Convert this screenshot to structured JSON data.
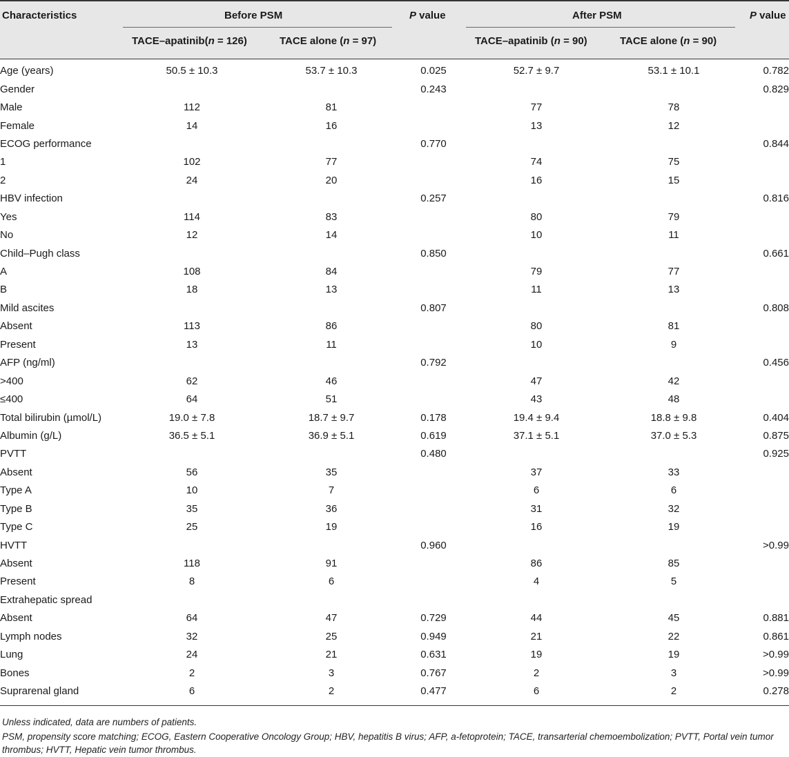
{
  "header": {
    "characteristics": "Characteristics",
    "before_psm": "Before PSM",
    "after_psm": "After PSM",
    "p_value_italic": "P",
    "p_value_rest": " value",
    "before_apatinib": "TACE–apatinib(",
    "before_apatinib_n": "n",
    "before_apatinib_val": " = 126)",
    "before_alone": "TACE alone (",
    "before_alone_n": "n",
    "before_alone_val": " = 97)",
    "after_apatinib": "TACE–apatinib (",
    "after_apatinib_n": "n",
    "after_apatinib_val": " = 90)",
    "after_alone": "TACE alone (",
    "after_alone_n": "n",
    "after_alone_val": " = 90)"
  },
  "rows": [
    [
      "Age (years)",
      "50.5 ± 10.3",
      "53.7 ± 10.3",
      "0.025",
      "52.7 ± 9.7",
      "53.1 ± 10.1",
      "0.782"
    ],
    [
      "Gender",
      "",
      "",
      "0.243",
      "",
      "",
      "0.829"
    ],
    [
      "Male",
      "112",
      "81",
      "",
      "77",
      "78",
      ""
    ],
    [
      "Female",
      "14",
      "16",
      "",
      "13",
      "12",
      ""
    ],
    [
      "ECOG performance",
      "",
      "",
      "0.770",
      "",
      "",
      "0.844"
    ],
    [
      "1",
      "102",
      "77",
      "",
      "74",
      "75",
      ""
    ],
    [
      "2",
      "24",
      "20",
      "",
      "16",
      "15",
      ""
    ],
    [
      "HBV infection",
      "",
      "",
      "0.257",
      "",
      "",
      "0.816"
    ],
    [
      "Yes",
      "114",
      "83",
      "",
      "80",
      "79",
      ""
    ],
    [
      "No",
      "12",
      "14",
      "",
      "10",
      "11",
      ""
    ],
    [
      "Child–Pugh class",
      "",
      "",
      "0.850",
      "",
      "",
      "0.661"
    ],
    [
      "A",
      "108",
      "84",
      "",
      "79",
      "77",
      ""
    ],
    [
      "B",
      "18",
      "13",
      "",
      "11",
      "13",
      ""
    ],
    [
      "Mild ascites",
      "",
      "",
      "0.807",
      "",
      "",
      "0.808"
    ],
    [
      "Absent",
      "113",
      "86",
      "",
      "80",
      "81",
      ""
    ],
    [
      "Present",
      "13",
      "11",
      "",
      "10",
      "9",
      ""
    ],
    [
      "AFP (ng/ml)",
      "",
      "",
      "0.792",
      "",
      "",
      "0.456"
    ],
    [
      ">400",
      "62",
      "46",
      "",
      "47",
      "42",
      ""
    ],
    [
      "≤400",
      "64",
      "51",
      "",
      "43",
      "48",
      ""
    ],
    [
      "Total bilirubin (µmol/L)",
      "19.0 ± 7.8",
      "18.7 ± 9.7",
      "0.178",
      "19.4 ± 9.4",
      "18.8 ± 9.8",
      "0.404"
    ],
    [
      "Albumin (g/L)",
      "36.5 ± 5.1",
      "36.9 ± 5.1",
      "0.619",
      "37.1 ± 5.1",
      "37.0 ± 5.3",
      "0.875"
    ],
    [
      "PVTT",
      "",
      "",
      "0.480",
      "",
      "",
      "0.925"
    ],
    [
      "Absent",
      "56",
      "35",
      "",
      "37",
      "33",
      ""
    ],
    [
      "Type A",
      "10",
      "7",
      "",
      "6",
      "6",
      ""
    ],
    [
      "Type B",
      "35",
      "36",
      "",
      "31",
      "32",
      ""
    ],
    [
      "Type C",
      "25",
      "19",
      "",
      "16",
      "19",
      ""
    ],
    [
      "HVTT",
      "",
      "",
      "0.960",
      "",
      "",
      ">0.99"
    ],
    [
      "Absent",
      "118",
      "91",
      "",
      "86",
      "85",
      ""
    ],
    [
      "Present",
      "8",
      "6",
      "",
      "4",
      "5",
      ""
    ],
    [
      "Extrahepatic spread",
      "",
      "",
      "",
      "",
      "",
      ""
    ],
    [
      "Absent",
      "64",
      "47",
      "0.729",
      "44",
      "45",
      "0.881"
    ],
    [
      "Lymph nodes",
      "32",
      "25",
      "0.949",
      "21",
      "22",
      "0.861"
    ],
    [
      "Lung",
      "24",
      "21",
      "0.631",
      "19",
      "19",
      ">0.99"
    ],
    [
      "Bones",
      "2",
      "3",
      "0.767",
      "2",
      "3",
      ">0.99"
    ],
    [
      "Suprarenal gland",
      "6",
      "2",
      "0.477",
      "6",
      "2",
      "0.278"
    ]
  ],
  "footnotes": {
    "note1": "Unless indicated, data are numbers of patients.",
    "note2": "PSM, propensity score matching; ECOG, Eastern Cooperative Oncology Group; HBV, hepatitis B virus; AFP, a-fetoprotein; TACE, transarterial chemoembolization; PVTT, Portal vein tumor thrombus; HVTT, Hepatic vein tumor thrombus."
  }
}
